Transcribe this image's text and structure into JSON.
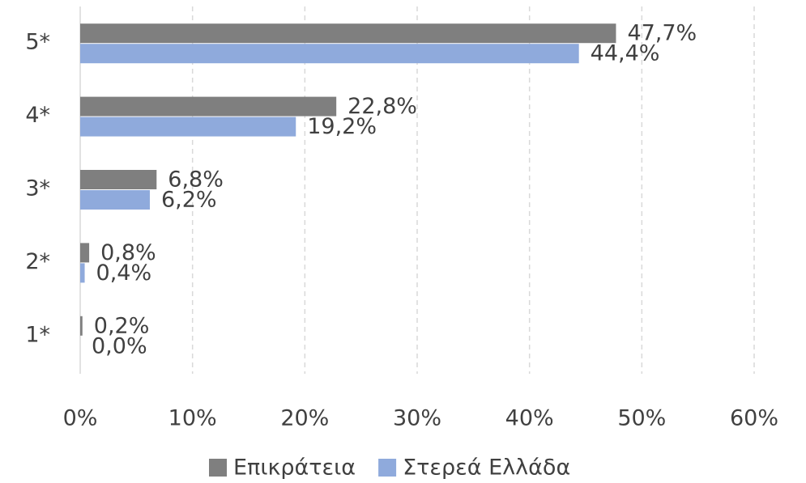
{
  "chart_data": {
    "type": "hbar",
    "categories": [
      "5*",
      "4*",
      "3*",
      "2*",
      "1*"
    ],
    "series": [
      {
        "name": "Επικράτεια",
        "color": "#7f7f7f",
        "values": [
          47.7,
          22.8,
          6.8,
          0.8,
          0.2
        ],
        "value_labels": [
          "47,7%",
          "22,8%",
          "6,8%",
          "0,8%",
          "0,2%"
        ]
      },
      {
        "name": "Στερεά Ελλάδα",
        "color": "#8faadc",
        "values": [
          44.4,
          19.2,
          6.2,
          0.4,
          0.0
        ],
        "value_labels": [
          "44,4%",
          "19,2%",
          "6,2%",
          "0,4%",
          "0,0%"
        ]
      }
    ],
    "xlim": [
      0,
      60
    ],
    "xticks": [
      {
        "value": 0,
        "label": "0%"
      },
      {
        "value": 10,
        "label": "10%"
      },
      {
        "value": 20,
        "label": "20%"
      },
      {
        "value": 30,
        "label": "30%"
      },
      {
        "value": 40,
        "label": "40%"
      },
      {
        "value": 50,
        "label": "50%"
      },
      {
        "value": 60,
        "label": "60%"
      }
    ],
    "grid": true,
    "legend": "bottom"
  }
}
